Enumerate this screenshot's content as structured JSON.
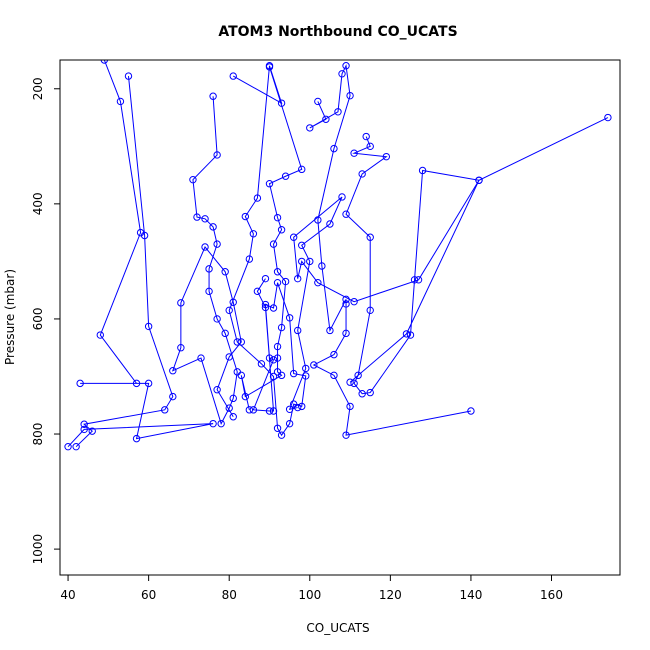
{
  "chart_data": {
    "type": "scatter",
    "title": "ATOM3 Northbound CO_UCATS",
    "xlabel": "CO_UCATS",
    "ylabel": "Pressure (mbar)",
    "xlim": [
      38,
      177
    ],
    "ylim": [
      1045,
      150
    ],
    "y_reversed": true,
    "x_ticks": [
      40,
      60,
      80,
      100,
      120,
      140,
      160
    ],
    "y_ticks": [
      200,
      400,
      600,
      800,
      1000
    ],
    "grid": false,
    "color": "#0000ff",
    "series": [
      {
        "values": [
          [
            49,
            150
          ],
          [
            53,
            222
          ],
          [
            58,
            450
          ],
          [
            48,
            628
          ],
          [
            57,
            712
          ],
          [
            43,
            712
          ],
          [
            60,
            712
          ],
          [
            57,
            808
          ],
          [
            76,
            782
          ],
          [
            44,
            792
          ],
          [
            40,
            822
          ]
        ]
      },
      {
        "values": [
          [
            55,
            178
          ],
          [
            59,
            455
          ],
          [
            60,
            613
          ],
          [
            66,
            735
          ],
          [
            64,
            758
          ],
          [
            44,
            783
          ],
          [
            46,
            795
          ],
          [
            42,
            822
          ]
        ]
      },
      {
        "values": [
          [
            76,
            213
          ],
          [
            77,
            315
          ],
          [
            71,
            358
          ],
          [
            72,
            423
          ],
          [
            74,
            426
          ],
          [
            76,
            440
          ],
          [
            77,
            470
          ],
          [
            75,
            513
          ],
          [
            75,
            552
          ],
          [
            77,
            600
          ],
          [
            79,
            625
          ],
          [
            82,
            692
          ],
          [
            81,
            738
          ],
          [
            80,
            755
          ],
          [
            78,
            782
          ],
          [
            73,
            668
          ],
          [
            66,
            690
          ],
          [
            68,
            650
          ],
          [
            68,
            572
          ],
          [
            74,
            475
          ],
          [
            79,
            518
          ],
          [
            81,
            571
          ],
          [
            83,
            640
          ],
          [
            80,
            666
          ],
          [
            77,
            723
          ],
          [
            81,
            770
          ]
        ]
      },
      {
        "values": [
          [
            81,
            178
          ],
          [
            93,
            225
          ],
          [
            90,
            160
          ],
          [
            87,
            390
          ],
          [
            84,
            422
          ],
          [
            86,
            452
          ],
          [
            85,
            496
          ],
          [
            80,
            585
          ],
          [
            82,
            640
          ],
          [
            88,
            678
          ],
          [
            91,
            700
          ],
          [
            92,
            790
          ],
          [
            93,
            802
          ],
          [
            95,
            782
          ],
          [
            96,
            748
          ],
          [
            98,
            752
          ],
          [
            99,
            699
          ],
          [
            96,
            695
          ],
          [
            95,
            598
          ],
          [
            92,
            537
          ],
          [
            91,
            581
          ],
          [
            89,
            575
          ],
          [
            90,
            668
          ],
          [
            91,
            671
          ],
          [
            86,
            758
          ],
          [
            90,
            760
          ],
          [
            91,
            760
          ],
          [
            89,
            580
          ],
          [
            87,
            552
          ],
          [
            89,
            530
          ]
        ]
      },
      {
        "values": [
          [
            90,
            162
          ],
          [
            98,
            340
          ],
          [
            94,
            352
          ],
          [
            90,
            365
          ],
          [
            92,
            424
          ],
          [
            93,
            445
          ],
          [
            91,
            470
          ],
          [
            92,
            518
          ],
          [
            94,
            535
          ],
          [
            93,
            615
          ],
          [
            92,
            648
          ],
          [
            92,
            668
          ],
          [
            92,
            692
          ],
          [
            93,
            698
          ],
          [
            84,
            735
          ],
          [
            83,
            698
          ],
          [
            85,
            758
          ]
        ]
      },
      {
        "values": [
          [
            102,
            222
          ],
          [
            104,
            253
          ],
          [
            100,
            268
          ],
          [
            107,
            240
          ],
          [
            108,
            174
          ],
          [
            109,
            160
          ],
          [
            110,
            212
          ],
          [
            106,
            304
          ],
          [
            102,
            428
          ],
          [
            103,
            508
          ],
          [
            105,
            620
          ],
          [
            109,
            566
          ],
          [
            109,
            574
          ],
          [
            109,
            625
          ],
          [
            106,
            662
          ],
          [
            101,
            680
          ],
          [
            106,
            698
          ],
          [
            110,
            752
          ],
          [
            109,
            802
          ],
          [
            140,
            760
          ]
        ]
      },
      {
        "values": [
          [
            114,
            283
          ],
          [
            115,
            300
          ],
          [
            111,
            312
          ],
          [
            119,
            318
          ],
          [
            113,
            348
          ],
          [
            109,
            418
          ],
          [
            115,
            458
          ],
          [
            115,
            585
          ],
          [
            112,
            698
          ],
          [
            111,
            712
          ],
          [
            113,
            730
          ],
          [
            115,
            728
          ],
          [
            125,
            628
          ],
          [
            126,
            532
          ],
          [
            128,
            342
          ],
          [
            142,
            359
          ],
          [
            124,
            626
          ],
          [
            110,
            710
          ]
        ]
      },
      {
        "values": [
          [
            174,
            250
          ],
          [
            142,
            359
          ],
          [
            127,
            532
          ],
          [
            111,
            570
          ],
          [
            102,
            537
          ],
          [
            98,
            500
          ],
          [
            97,
            530
          ],
          [
            96,
            458
          ],
          [
            108,
            388
          ],
          [
            105,
            435
          ],
          [
            98,
            472
          ],
          [
            100,
            500
          ],
          [
            97,
            620
          ],
          [
            99,
            686
          ],
          [
            95,
            757
          ],
          [
            97,
            754
          ]
        ]
      }
    ]
  }
}
